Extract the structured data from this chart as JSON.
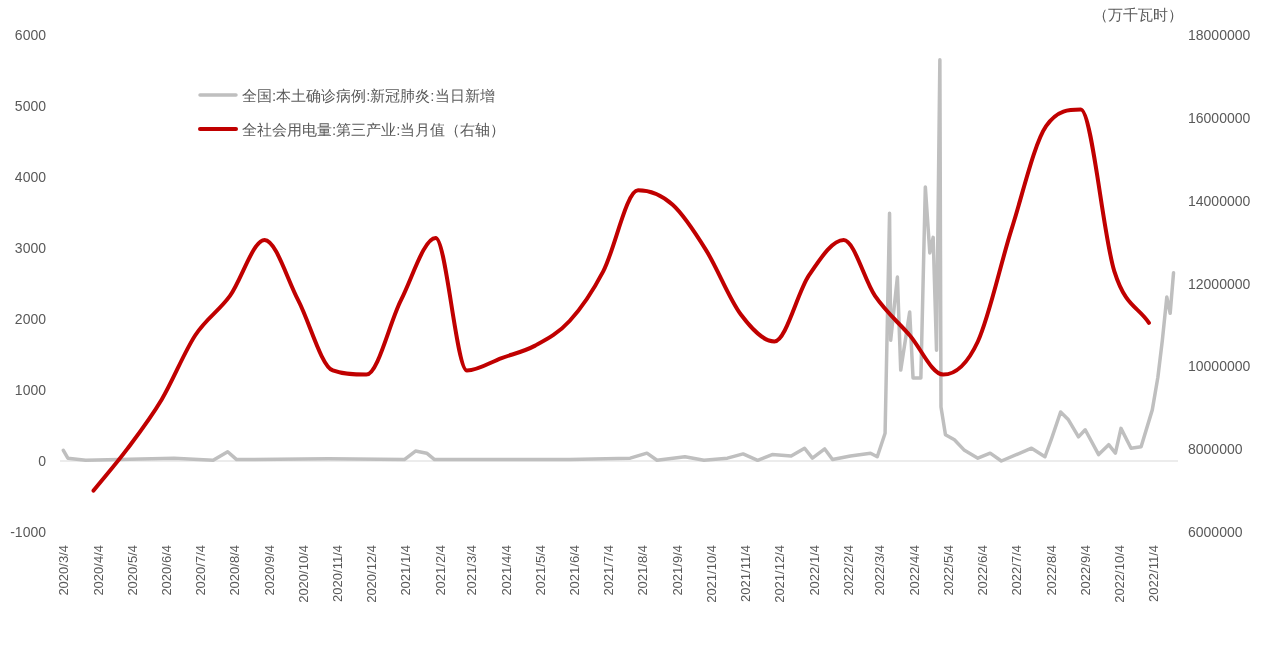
{
  "chart_data": {
    "type": "line",
    "y2label": "（万千瓦时）",
    "legend": "top left",
    "marker": "none",
    "line_style": "solid",
    "xlim": [
      "2020-03-01",
      "2022-11-26"
    ],
    "xticks": [
      {
        "value": "2020-03-04",
        "label": "2020/3/4"
      },
      {
        "value": "2020-04-04",
        "label": "2020/4/4"
      },
      {
        "value": "2020-05-04",
        "label": "2020/5/4"
      },
      {
        "value": "2020-06-04",
        "label": "2020/6/4"
      },
      {
        "value": "2020-07-04",
        "label": "2020/7/4"
      },
      {
        "value": "2020-08-04",
        "label": "2020/8/4"
      },
      {
        "value": "2020-09-04",
        "label": "2020/9/4"
      },
      {
        "value": "2020-10-04",
        "label": "2020/10/4"
      },
      {
        "value": "2020-11-04",
        "label": "2020/11/4"
      },
      {
        "value": "2020-12-04",
        "label": "2020/12/4"
      },
      {
        "value": "2021-01-04",
        "label": "2021/1/4"
      },
      {
        "value": "2021-02-04",
        "label": "2021/2/4"
      },
      {
        "value": "2021-03-04",
        "label": "2021/3/4"
      },
      {
        "value": "2021-04-04",
        "label": "2021/4/4"
      },
      {
        "value": "2021-05-04",
        "label": "2021/5/4"
      },
      {
        "value": "2021-06-04",
        "label": "2021/6/4"
      },
      {
        "value": "2021-07-04",
        "label": "2021/7/4"
      },
      {
        "value": "2021-08-04",
        "label": "2021/8/4"
      },
      {
        "value": "2021-09-04",
        "label": "2021/9/4"
      },
      {
        "value": "2021-10-04",
        "label": "2021/10/4"
      },
      {
        "value": "2021-11-04",
        "label": "2021/11/4"
      },
      {
        "value": "2021-12-04",
        "label": "2021/12/4"
      },
      {
        "value": "2022-01-04",
        "label": "2022/1/4"
      },
      {
        "value": "2022-02-04",
        "label": "2022/2/4"
      },
      {
        "value": "2022-03-04",
        "label": "2022/3/4"
      },
      {
        "value": "2022-04-04",
        "label": "2022/4/4"
      },
      {
        "value": "2022-05-04",
        "label": "2022/5/4"
      },
      {
        "value": "2022-06-04",
        "label": "2022/6/4"
      },
      {
        "value": "2022-07-04",
        "label": "2022/7/4"
      },
      {
        "value": "2022-08-04",
        "label": "2022/8/4"
      },
      {
        "value": "2022-09-04",
        "label": "2022/9/4"
      },
      {
        "value": "2022-10-04",
        "label": "2022/10/4"
      },
      {
        "value": "2022-11-04",
        "label": "2022/11/4"
      }
    ],
    "ylim": [
      -1000,
      6000
    ],
    "yticks": [
      -1000,
      0,
      1000,
      2000,
      3000,
      4000,
      5000,
      6000
    ],
    "y2lim": [
      6000000,
      18000000
    ],
    "y2ticks": [
      6000000,
      8000000,
      10000000,
      12000000,
      14000000,
      16000000,
      18000000
    ],
    "series": [
      {
        "name": "全国:本土确诊病例:新冠肺炎:当日新增",
        "color": "#bfbfbf",
        "x": [
          "2020-03-04",
          "2020-03-08",
          "2020-03-24",
          "2020-06-11",
          "2020-07-16",
          "2020-07-29",
          "2020-08-06",
          "2020-10-27",
          "2021-01-03",
          "2021-01-13",
          "2021-01-23",
          "2021-01-30",
          "2021-04-02",
          "2021-05-31",
          "2021-07-24",
          "2021-08-08",
          "2021-08-17",
          "2021-09-11",
          "2021-09-28",
          "2021-10-19",
          "2021-11-02",
          "2021-11-15",
          "2021-11-28",
          "2021-12-15",
          "2021-12-27",
          "2022-01-03",
          "2022-01-14",
          "2022-01-21",
          "2022-02-06",
          "2022-02-24",
          "2022-03-02",
          "2022-03-09",
          "2022-03-13",
          "2022-03-14",
          "2022-03-20",
          "2022-03-23",
          "2022-03-31",
          "2022-04-03",
          "2022-04-10",
          "2022-04-14",
          "2022-04-18",
          "2022-04-21",
          "2022-04-24",
          "2022-04-27",
          "2022-04-28",
          "2022-05-02",
          "2022-05-10",
          "2022-05-19",
          "2022-05-31",
          "2022-06-11",
          "2022-06-21",
          "2022-07-18",
          "2022-07-30",
          "2022-08-05",
          "2022-08-13",
          "2022-08-20",
          "2022-08-29",
          "2022-09-04",
          "2022-09-16",
          "2022-09-25",
          "2022-10-01",
          "2022-10-06",
          "2022-10-15",
          "2022-10-24",
          "2022-11-03",
          "2022-11-08",
          "2022-11-12",
          "2022-11-16",
          "2022-11-19",
          "2022-11-22"
        ],
        "values": [
          150,
          40,
          10,
          40,
          10,
          130,
          20,
          30,
          20,
          140,
          110,
          20,
          20,
          20,
          40,
          110,
          10,
          60,
          10,
          40,
          100,
          10,
          90,
          70,
          180,
          40,
          170,
          20,
          70,
          110,
          60,
          390,
          3490,
          1700,
          2590,
          1280,
          2100,
          1170,
          1170,
          3860,
          2930,
          3150,
          1560,
          5650,
          760,
          370,
          300,
          150,
          40,
          110,
          0,
          180,
          60,
          320,
          690,
          580,
          340,
          440,
          90,
          230,
          110,
          460,
          180,
          200,
          720,
          1180,
          1700,
          2310,
          2080,
          2650
        ]
      },
      {
        "name": "全社会用电量:第三产业:当月值（右轴）",
        "color": "#c00000",
        "axis": "y2",
        "x": [
          "2020-03-31",
          "2020-04-30",
          "2020-05-31",
          "2020-06-30",
          "2020-07-31",
          "2020-08-31",
          "2020-09-30",
          "2020-10-31",
          "2020-11-30",
          "2020-12-31",
          "2021-01-31",
          "2021-02-28",
          "2021-03-31",
          "2021-04-30",
          "2021-05-31",
          "2021-06-30",
          "2021-07-31",
          "2021-08-31",
          "2021-09-30",
          "2021-10-31",
          "2021-11-30",
          "2021-12-31",
          "2022-01-31",
          "2022-02-28",
          "2022-03-31",
          "2022-04-30",
          "2022-05-31",
          "2022-06-30",
          "2022-07-31",
          "2022-08-31",
          "2022-09-30",
          "2022-10-31"
        ],
        "values": [
          7000000,
          8000000,
          9200000,
          10750000,
          11700000,
          13050000,
          11600000,
          9900000,
          9800000,
          11600000,
          13100000,
          9900000,
          10200000,
          10500000,
          11100000,
          12300000,
          14250000,
          13900000,
          12800000,
          11250000,
          10600000,
          12200000,
          13050000,
          11700000,
          10750000,
          9800000,
          10600000,
          13300000,
          15800000,
          16200000,
          12300000,
          11050000
        ]
      }
    ]
  }
}
